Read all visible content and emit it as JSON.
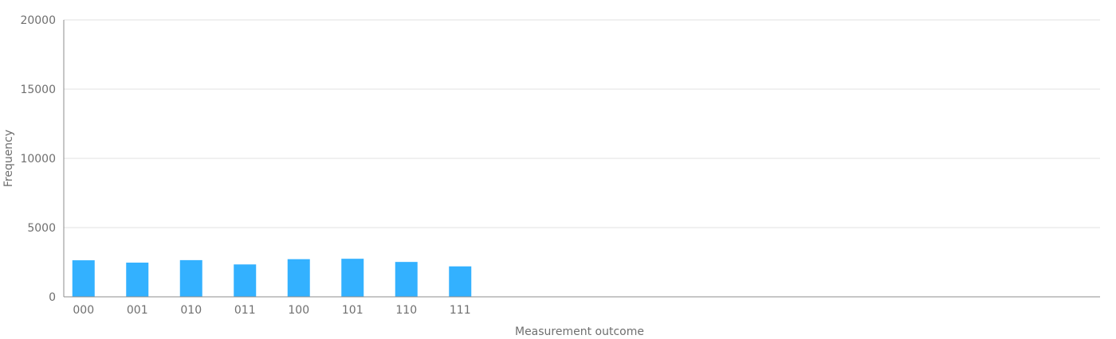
{
  "chart_data": {
    "type": "bar",
    "title": "",
    "xlabel": "Measurement outcome",
    "ylabel": "Frequency",
    "categories": [
      "000",
      "001",
      "010",
      "011",
      "100",
      "101",
      "110",
      "111"
    ],
    "values": [
      2640,
      2470,
      2650,
      2340,
      2720,
      2750,
      2520,
      2200
    ],
    "ylim": [
      0,
      20000
    ],
    "yticks": [
      0,
      5000,
      10000,
      15000,
      20000
    ],
    "ytick_labels": [
      "0",
      "5000",
      "10000",
      "15000",
      "20000"
    ],
    "grid": true,
    "legend": "none",
    "colors": {
      "bar": "#33b1ff",
      "grid": "#e0e0e0",
      "axis": "#8d8d8d",
      "text": "#6f6f6f"
    }
  }
}
